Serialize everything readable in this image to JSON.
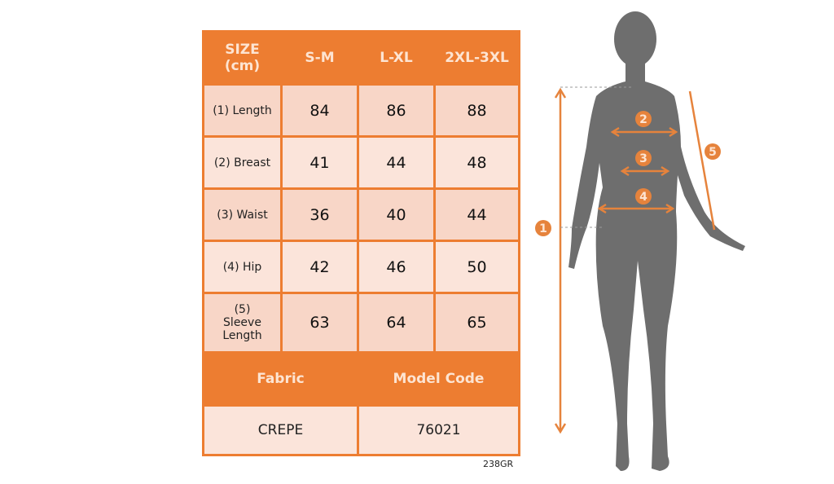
{
  "table": {
    "header": [
      "SIZE\n(cm)",
      "S-M",
      "L-XL",
      "2XL-3XL"
    ],
    "rows": [
      {
        "label": "(1) Length",
        "values": [
          "84",
          "86",
          "88"
        ]
      },
      {
        "label": "(2) Breast",
        "values": [
          "41",
          "44",
          "48"
        ]
      },
      {
        "label": "(3) Waist",
        "values": [
          "36",
          "40",
          "44"
        ]
      },
      {
        "label": "(4) Hip",
        "values": [
          "42",
          "46",
          "50"
        ]
      },
      {
        "label": "(5) Sleeve Length",
        "values": [
          "63",
          "64",
          "65"
        ]
      }
    ],
    "footer_header": [
      "Fabric",
      "Model Code"
    ],
    "footer_values": [
      "CREPE",
      "76021"
    ]
  },
  "code": "238GR",
  "figure": {
    "markers": [
      "1",
      "2",
      "3",
      "4",
      "5"
    ]
  },
  "colors": {
    "accent": "#ed7d31",
    "silhouette": "#6e6e6e"
  }
}
